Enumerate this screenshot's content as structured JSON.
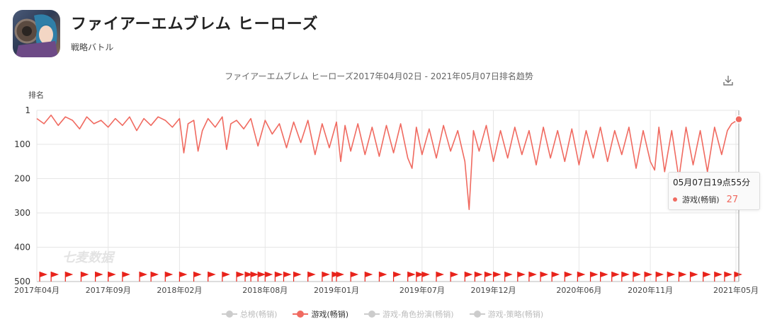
{
  "app": {
    "title": "ファイアーエムブレム ヒーローズ",
    "genre": "戦略バトル"
  },
  "colors": {
    "series": "#f06a60",
    "flag": "#e8231b",
    "inactive": "#cccccc",
    "grid": "#e6e6e6",
    "axis_text": "#555555"
  },
  "chart_data": {
    "type": "line",
    "title": "ファイアーエムブレム ヒーローズ2017年04月02日 - 2021年05月07日排名趋势",
    "ylabel": "排名",
    "y_inverted": true,
    "ylim": [
      1,
      500
    ],
    "y_ticks": [
      "1",
      "100",
      "200",
      "300",
      "400",
      "500"
    ],
    "y_tick_values": [
      1,
      100,
      200,
      300,
      400,
      500
    ],
    "x_ticks": [
      "2017年04月",
      "2017年09月",
      "2018年02月",
      "2018年08月",
      "2019年01月",
      "2019年07月",
      "2019年12月",
      "2020年06月",
      "2020年11月",
      "2021年05月"
    ],
    "x_tick_months": [
      0,
      5,
      10,
      16,
      21,
      27,
      32,
      38,
      43,
      49
    ],
    "x_range_months": [
      0,
      49.2
    ],
    "grid": true,
    "legend_position": "bottom",
    "watermark": "七麦数据",
    "series": [
      {
        "name": "游戏(畅销)",
        "active": true,
        "points": [
          [
            0,
            25
          ],
          [
            0.5,
            40
          ],
          [
            1,
            15
          ],
          [
            1.5,
            45
          ],
          [
            2,
            20
          ],
          [
            2.5,
            30
          ],
          [
            3,
            55
          ],
          [
            3.5,
            20
          ],
          [
            4,
            40
          ],
          [
            4.5,
            30
          ],
          [
            5,
            50
          ],
          [
            5.5,
            25
          ],
          [
            6,
            45
          ],
          [
            6.5,
            20
          ],
          [
            7,
            60
          ],
          [
            7.5,
            25
          ],
          [
            8,
            45
          ],
          [
            8.5,
            20
          ],
          [
            9,
            30
          ],
          [
            9.5,
            50
          ],
          [
            10,
            25
          ],
          [
            10.3,
            125
          ],
          [
            10.6,
            40
          ],
          [
            11,
            30
          ],
          [
            11.3,
            120
          ],
          [
            11.6,
            60
          ],
          [
            12,
            25
          ],
          [
            12.5,
            50
          ],
          [
            13,
            20
          ],
          [
            13.3,
            115
          ],
          [
            13.6,
            40
          ],
          [
            14,
            30
          ],
          [
            14.5,
            55
          ],
          [
            15,
            25
          ],
          [
            15.5,
            105
          ],
          [
            16,
            30
          ],
          [
            16.5,
            70
          ],
          [
            17,
            40
          ],
          [
            17.5,
            110
          ],
          [
            18,
            35
          ],
          [
            18.5,
            95
          ],
          [
            19,
            30
          ],
          [
            19.5,
            130
          ],
          [
            20,
            40
          ],
          [
            20.5,
            110
          ],
          [
            21,
            35
          ],
          [
            21.3,
            150
          ],
          [
            21.6,
            45
          ],
          [
            22,
            120
          ],
          [
            22.5,
            40
          ],
          [
            23,
            130
          ],
          [
            23.5,
            50
          ],
          [
            24,
            135
          ],
          [
            24.5,
            45
          ],
          [
            25,
            125
          ],
          [
            25.5,
            40
          ],
          [
            26,
            140
          ],
          [
            26.3,
            170
          ],
          [
            26.6,
            50
          ],
          [
            27,
            130
          ],
          [
            27.5,
            55
          ],
          [
            28,
            140
          ],
          [
            28.5,
            45
          ],
          [
            29,
            120
          ],
          [
            29.5,
            60
          ],
          [
            30,
            150
          ],
          [
            30.3,
            290
          ],
          [
            30.6,
            60
          ],
          [
            31,
            120
          ],
          [
            31.5,
            45
          ],
          [
            32,
            150
          ],
          [
            32.5,
            60
          ],
          [
            33,
            140
          ],
          [
            33.5,
            50
          ],
          [
            34,
            130
          ],
          [
            34.5,
            60
          ],
          [
            35,
            160
          ],
          [
            35.5,
            50
          ],
          [
            36,
            140
          ],
          [
            36.5,
            60
          ],
          [
            37,
            150
          ],
          [
            37.5,
            55
          ],
          [
            38,
            160
          ],
          [
            38.5,
            60
          ],
          [
            39,
            140
          ],
          [
            39.5,
            50
          ],
          [
            40,
            150
          ],
          [
            40.5,
            60
          ],
          [
            41,
            130
          ],
          [
            41.5,
            50
          ],
          [
            42,
            170
          ],
          [
            42.5,
            60
          ],
          [
            43,
            150
          ],
          [
            43.3,
            175
          ],
          [
            43.6,
            50
          ],
          [
            44,
            180
          ],
          [
            44.5,
            60
          ],
          [
            45,
            200
          ],
          [
            45.5,
            50
          ],
          [
            46,
            160
          ],
          [
            46.5,
            60
          ],
          [
            47,
            180
          ],
          [
            47.5,
            50
          ],
          [
            48,
            130
          ],
          [
            48.4,
            60
          ],
          [
            48.7,
            40
          ],
          [
            49.2,
            27
          ]
        ]
      },
      {
        "name": "总榜(畅销)",
        "active": false
      },
      {
        "name": "游戏-角色扮演(畅销)",
        "active": false
      },
      {
        "name": "游戏-策略(畅销)",
        "active": false
      }
    ],
    "event_flags_months": [
      0.2,
      1,
      2,
      3.1,
      4.1,
      5,
      6,
      7.2,
      8,
      9,
      10,
      11,
      12,
      13,
      14,
      14.6,
      15,
      15.5,
      16,
      16.7,
      17.3,
      18,
      19,
      20,
      20.7,
      21,
      22,
      23,
      24,
      25,
      26,
      26.6,
      27,
      28,
      29,
      30,
      30.7,
      31.4,
      32,
      32.8,
      33.7,
      34.5,
      35.3,
      36.1,
      37,
      37.9,
      38.8,
      39.5,
      40.3,
      41,
      41.8,
      42.6,
      43.4,
      44.2,
      45,
      45.8,
      46.7,
      47.5,
      48.2,
      48.9
    ],
    "tooltip": {
      "time": "05月07日19点55分",
      "series": "游戏(畅销)",
      "value": "27"
    }
  }
}
